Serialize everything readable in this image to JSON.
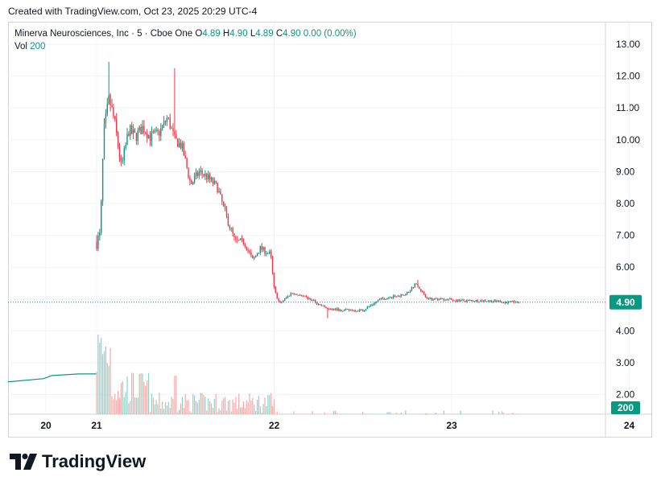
{
  "caption": "Created with TradingView.com, Oct 23, 2025 20:29 UTC-4",
  "legend": {
    "name": "Minerva Neurosciences, Inc · 5 · Cboe One",
    "o_label": "O",
    "o": "4.89",
    "h_label": "H",
    "h": "4.90",
    "l_label": "L",
    "l": "4.89",
    "c_label": "C",
    "c": "4.90",
    "change": "0.00 (0.00%)",
    "vol_label": "Vol",
    "vol": "200"
  },
  "price_badge": "4.90",
  "volume_badge": "200",
  "brand": "TradingView",
  "colors": {
    "up": "#089981",
    "down": "#f23645",
    "up_vol": "#8fd3c8",
    "down_vol": "#f7a9a7",
    "grid": "#f0f3fa"
  },
  "chart_data": {
    "type": "candlestick",
    "y_ticks": [
      "13.00",
      "12.00",
      "11.00",
      "10.00",
      "9.00",
      "8.00",
      "7.00",
      "6.00",
      "5.00",
      "4.00",
      "3.00",
      "2.00"
    ],
    "ylim": [
      1.8,
      13.3
    ],
    "x_ticks": [
      "20",
      "21",
      "22",
      "23",
      "24"
    ],
    "last_price": 4.9,
    "anchors": [
      {
        "d": 0.0,
        "p": 6.8
      },
      {
        "d": 0.02,
        "p": 7.0
      },
      {
        "d": 0.04,
        "p": 10.2
      },
      {
        "d": 0.07,
        "p": 11.3
      },
      {
        "d": 0.1,
        "p": 10.6
      },
      {
        "d": 0.14,
        "p": 9.1
      },
      {
        "d": 0.18,
        "p": 10.3
      },
      {
        "d": 0.22,
        "p": 10.1
      },
      {
        "d": 0.26,
        "p": 10.4
      },
      {
        "d": 0.3,
        "p": 10.1
      },
      {
        "d": 0.35,
        "p": 10.2
      },
      {
        "d": 0.4,
        "p": 10.7
      },
      {
        "d": 0.44,
        "p": 10.0
      },
      {
        "d": 0.48,
        "p": 9.8
      },
      {
        "d": 0.53,
        "p": 8.6
      },
      {
        "d": 0.58,
        "p": 9.0
      },
      {
        "d": 0.63,
        "p": 8.8
      },
      {
        "d": 0.68,
        "p": 8.5
      },
      {
        "d": 0.73,
        "p": 7.6
      },
      {
        "d": 0.78,
        "p": 6.8
      },
      {
        "d": 0.83,
        "p": 6.8
      },
      {
        "d": 0.88,
        "p": 6.2
      },
      {
        "d": 0.92,
        "p": 6.6
      },
      {
        "d": 0.98,
        "p": 6.4
      },
      {
        "d": 1.0,
        "p": 5.3
      },
      {
        "d": 1.03,
        "p": 4.85
      },
      {
        "d": 1.1,
        "p": 5.2
      },
      {
        "d": 1.2,
        "p": 5.0
      },
      {
        "d": 1.3,
        "p": 4.7
      },
      {
        "d": 1.4,
        "p": 4.65
      },
      {
        "d": 1.5,
        "p": 4.65
      },
      {
        "d": 1.6,
        "p": 5.0
      },
      {
        "d": 1.7,
        "p": 5.1
      },
      {
        "d": 1.75,
        "p": 5.2
      },
      {
        "d": 1.8,
        "p": 5.5
      },
      {
        "d": 1.86,
        "p": 5.0
      },
      {
        "d": 1.95,
        "p": 5.0
      },
      {
        "d": 2.05,
        "p": 4.95
      },
      {
        "d": 2.2,
        "p": 4.95
      },
      {
        "d": 2.3,
        "p": 4.9
      },
      {
        "d": 2.38,
        "p": 4.9
      }
    ],
    "spikes": [
      {
        "d": 0.07,
        "high": 12.45
      },
      {
        "d": 0.44,
        "high": 12.25
      },
      {
        "d": 1.0,
        "high": 5.8
      },
      {
        "d": 1.3,
        "low": 4.4
      },
      {
        "d": 1.81,
        "high": 5.6
      }
    ],
    "volume_ticks_top": 4.5,
    "pre_market_line": [
      {
        "d": -0.5,
        "p": 2.4
      },
      {
        "d": -0.3,
        "p": 2.5
      },
      {
        "d": -0.25,
        "p": 2.6
      },
      {
        "d": -0.1,
        "p": 2.65
      },
      {
        "d": 0.0,
        "p": 2.65
      }
    ]
  }
}
